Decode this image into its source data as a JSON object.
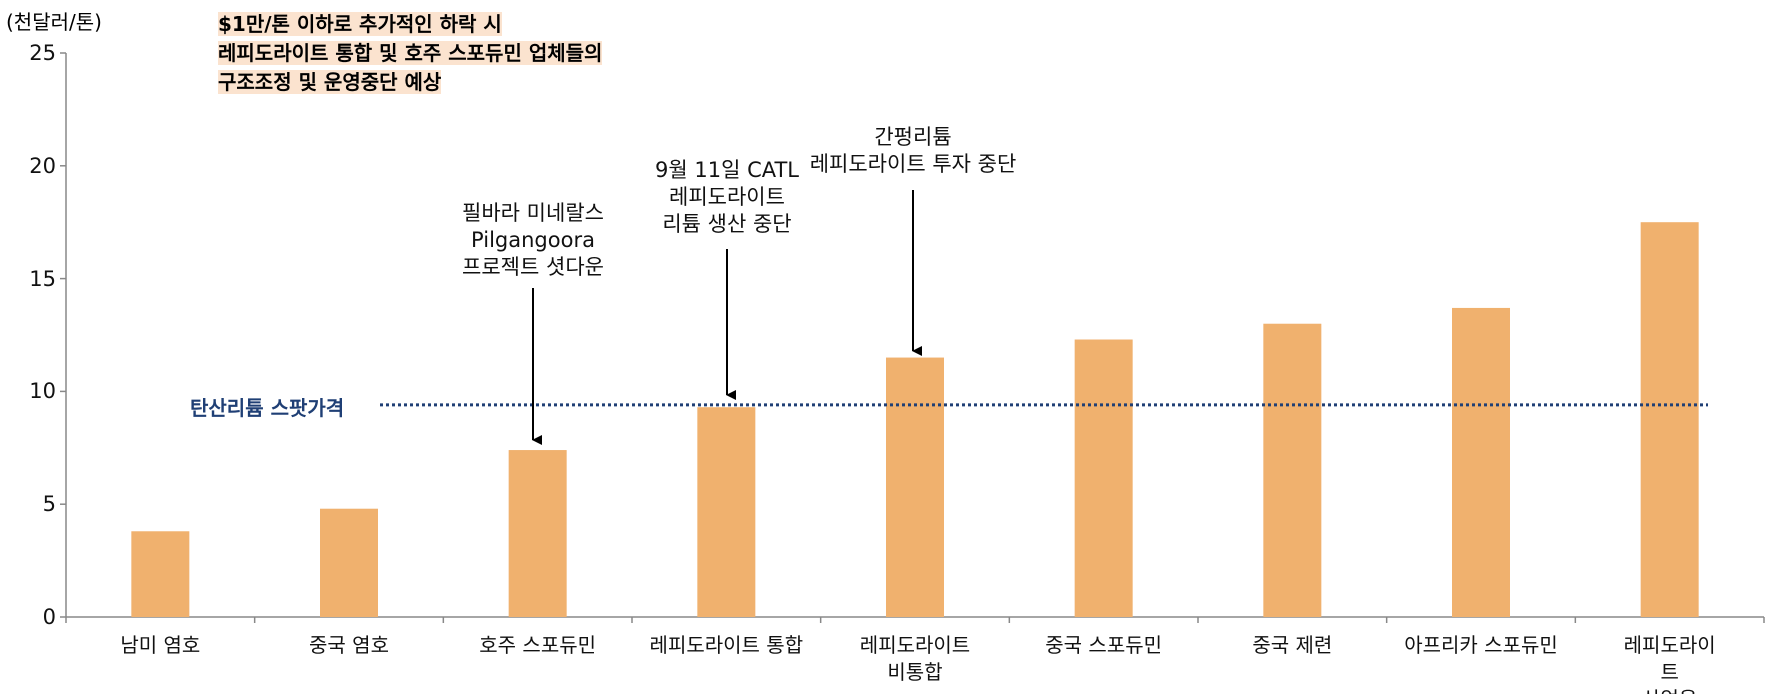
{
  "chart_data": {
    "type": "bar",
    "y_label": "(천달러/톤)",
    "title": "$1만/톤 이하로 추가적인 하락 시\n레피도라이트 통합 및 호주 스포듀민 업체들의\n구조조정 및 운영중단 예상",
    "categories": [
      "남미 염호",
      "중국 염호",
      "호주 스포듀민",
      "레피도라이트 통합",
      "레피도라이트\n비통합",
      "중국 스포듀민",
      "중국 제련",
      "아프리카 스포듀민",
      "레피도라이트\n산업용"
    ],
    "values": [
      3.8,
      4.8,
      7.4,
      9.3,
      11.5,
      12.3,
      13.0,
      13.7,
      17.5
    ],
    "color": "#f0b16e",
    "ylim": [
      0,
      25
    ],
    "yticks": [
      0,
      5,
      10,
      15,
      20,
      25
    ],
    "reference_line": {
      "name": "탄산리튬 스팟가격",
      "value": 9.4,
      "color": "#1f3f75"
    },
    "annotations": [
      "필바라 미네랄스\nPilgangoora\n프로젝트 셧다운",
      "9월 11일 CATL\n레피도라이트\n리튬 생산 중단",
      "간펑리튬\n레피도라이트 투자 중단"
    ]
  }
}
